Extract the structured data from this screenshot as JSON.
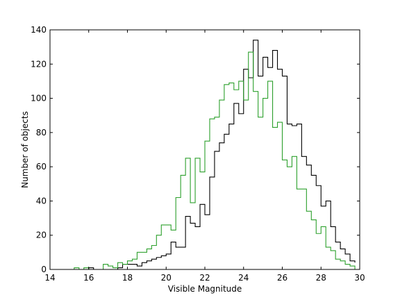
{
  "chart_data": {
    "type": "line",
    "title": "",
    "xlabel": "Visible Magnitude",
    "ylabel": "Number of objects",
    "xlim": [
      14,
      30
    ],
    "ylim": [
      0,
      140
    ],
    "xticks": [
      14,
      16,
      18,
      20,
      22,
      24,
      26,
      28,
      30
    ],
    "yticks": [
      0,
      20,
      40,
      60,
      80,
      100,
      120,
      140
    ],
    "grid": false,
    "legend": "none",
    "step": "post",
    "series": [
      {
        "color": "#000000",
        "x": [
          14.0,
          14.25,
          14.5,
          14.75,
          15.0,
          15.25,
          15.5,
          15.75,
          16.0,
          16.25,
          16.5,
          16.75,
          17.0,
          17.25,
          17.5,
          17.75,
          18.0,
          18.25,
          18.5,
          18.75,
          19.0,
          19.25,
          19.5,
          19.75,
          20.0,
          20.25,
          20.5,
          20.75,
          21.0,
          21.25,
          21.5,
          21.75,
          22.0,
          22.25,
          22.5,
          22.75,
          23.0,
          23.25,
          23.5,
          23.75,
          24.0,
          24.25,
          24.5,
          24.75,
          25.0,
          25.25,
          25.5,
          25.75,
          26.0,
          26.25,
          26.5,
          26.75,
          27.0,
          27.25,
          27.5,
          27.75,
          28.0,
          28.25,
          28.5,
          28.75,
          29.0,
          29.25,
          29.5,
          29.75
        ],
        "y": [
          0,
          0,
          0,
          0,
          0,
          0,
          0,
          0,
          1,
          0,
          0,
          0,
          0,
          0,
          1,
          3,
          3,
          3,
          2,
          4,
          5,
          6,
          7,
          8,
          9,
          16,
          13,
          13,
          31,
          27,
          25,
          38,
          32,
          54,
          69,
          74,
          79,
          85,
          97,
          91,
          117,
          112,
          134,
          113,
          124,
          118,
          128,
          117,
          113,
          85,
          84,
          85,
          66,
          61,
          55,
          49,
          37,
          40,
          25,
          16,
          12,
          9,
          5,
          4
        ],
        "end": 29.75
      },
      {
        "color": "#2ca02c",
        "x": [
          14.0,
          14.25,
          14.5,
          14.75,
          15.0,
          15.25,
          15.5,
          15.75,
          16.0,
          16.25,
          16.5,
          16.75,
          17.0,
          17.25,
          17.5,
          17.75,
          18.0,
          18.25,
          18.5,
          18.75,
          19.0,
          19.25,
          19.5,
          19.75,
          20.0,
          20.25,
          20.5,
          20.75,
          21.0,
          21.25,
          21.5,
          21.75,
          22.0,
          22.25,
          22.5,
          22.75,
          23.0,
          23.25,
          23.5,
          23.75,
          24.0,
          24.25,
          24.5,
          24.75,
          25.0,
          25.25,
          25.5,
          25.75,
          26.0,
          26.25,
          26.5,
          26.75,
          27.0,
          27.25,
          27.5,
          27.75,
          28.0,
          28.25,
          28.5,
          28.75,
          29.0,
          29.25,
          29.5,
          29.75
        ],
        "y": [
          0,
          0,
          0,
          0,
          0,
          1,
          0,
          1,
          0,
          0,
          0,
          3,
          2,
          1,
          4,
          3,
          5,
          6,
          10,
          10,
          12,
          14,
          20,
          26,
          26,
          23,
          42,
          55,
          65,
          39,
          65,
          57,
          75,
          88,
          89,
          99,
          108,
          109,
          105,
          110,
          99,
          127,
          104,
          89,
          100,
          110,
          83,
          86,
          64,
          60,
          66,
          47,
          47,
          34,
          29,
          21,
          25,
          13,
          11,
          6,
          5,
          3,
          2,
          0
        ],
        "end": 29.75
      }
    ]
  }
}
